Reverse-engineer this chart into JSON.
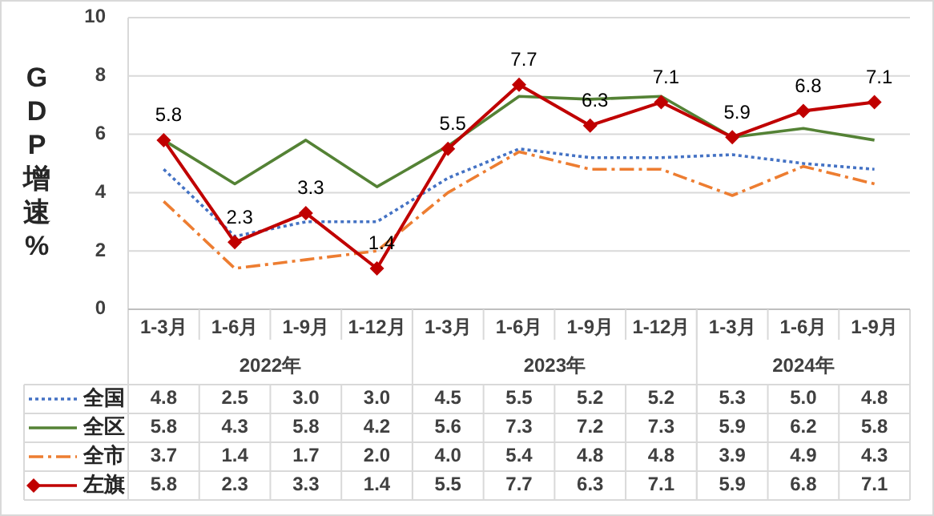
{
  "chart_data": {
    "type": "line",
    "ylabel": "GDP增速%",
    "categories": [
      "1-3月",
      "1-6月",
      "1-9月",
      "1-12月",
      "1-3月",
      "1-6月",
      "1-9月",
      "1-12月",
      "1-3月",
      "1-6月",
      "1-9月"
    ],
    "annotations": [
      "2022年",
      "2023年",
      "2024年"
    ],
    "series": [
      {
        "name": "全国",
        "color": "#4472c4",
        "line_style": "dotted",
        "marker": "none",
        "values": [
          4.8,
          2.5,
          3.0,
          3.0,
          4.5,
          5.5,
          5.2,
          5.2,
          5.3,
          5.0,
          4.8
        ],
        "value_labels": [
          "4.8",
          "2.5",
          "3.0",
          "3.0",
          "4.5",
          "5.5",
          "5.2",
          "5.2",
          "5.3",
          "5.0",
          "4.8"
        ]
      },
      {
        "name": "全区",
        "color": "#548235",
        "line_style": "solid",
        "marker": "none",
        "values": [
          5.8,
          4.3,
          5.8,
          4.2,
          5.6,
          7.3,
          7.2,
          7.3,
          5.9,
          6.2,
          5.8
        ],
        "value_labels": [
          "5.8",
          "4.3",
          "5.8",
          "4.2",
          "5.6",
          "7.3",
          "7.2",
          "7.3",
          "5.9",
          "6.2",
          "5.8"
        ]
      },
      {
        "name": "全市",
        "color": "#ed7d31",
        "line_style": "dashed",
        "marker": "none",
        "values": [
          3.7,
          1.4,
          1.7,
          2.0,
          4.0,
          5.4,
          4.8,
          4.8,
          3.9,
          4.9,
          4.3
        ],
        "value_labels": [
          "3.7",
          "1.4",
          "1.7",
          "2.0",
          "4.0",
          "5.4",
          "4.8",
          "4.8",
          "3.9",
          "4.9",
          "4.3"
        ]
      },
      {
        "name": "左旗",
        "color": "#c00000",
        "line_style": "solid",
        "marker": "diamond",
        "values": [
          5.8,
          2.3,
          3.3,
          1.4,
          5.5,
          7.7,
          6.3,
          7.1,
          5.9,
          6.8,
          7.1
        ],
        "value_labels": [
          "5.8",
          "2.3",
          "3.3",
          "1.4",
          "5.5",
          "7.7",
          "6.3",
          "7.1",
          "5.9",
          "6.8",
          "7.1"
        ]
      }
    ],
    "ylim": [
      0,
      10
    ],
    "yticks": [
      0,
      2,
      4,
      6,
      8,
      10
    ],
    "grid": "y",
    "legend": "bottom"
  }
}
